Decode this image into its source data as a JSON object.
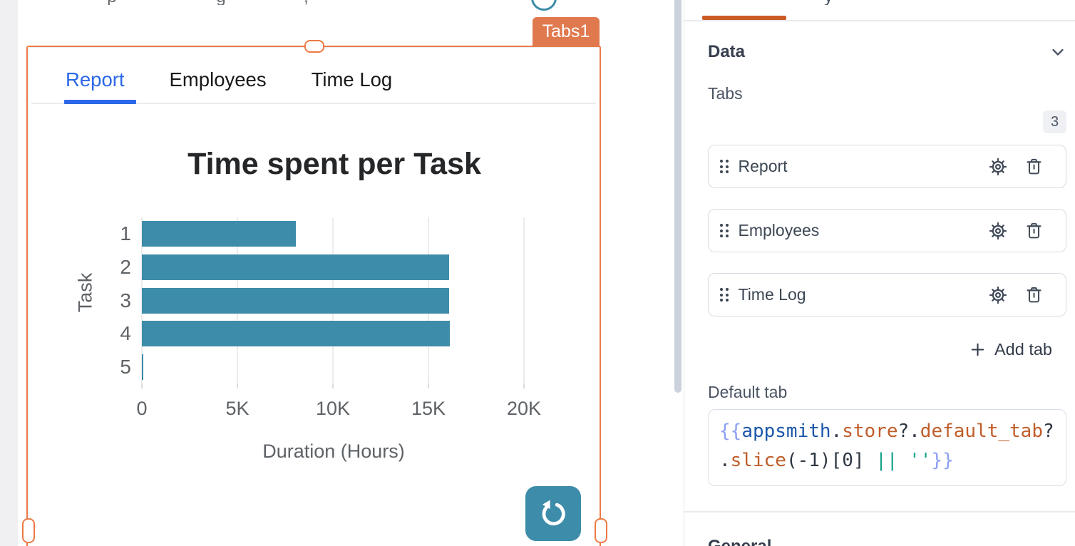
{
  "colors": {
    "widget_selection_orange": "#ed7a45",
    "widget_badge_bg": "#e0794e",
    "bar_teal": "#3d8caa",
    "active_widget_tab_blue": "#2c68e8",
    "pane_active_tab_orange": "#cb5a27",
    "code_brace": "#8b9ff2",
    "code_variable_blue": "#1b56a9",
    "code_property_orange": "#c05d2a",
    "code_operator_teal": "#17a38b"
  },
  "canvas": {
    "widget_badge": "Tabs1",
    "cutoff_glyphs": [
      "p",
      "g",
      ","
    ],
    "widget_tabs": [
      {
        "label": "Report",
        "active": true
      },
      {
        "label": "Employees",
        "active": false
      },
      {
        "label": "Time Log",
        "active": false
      }
    ]
  },
  "chart_data": {
    "type": "bar",
    "orientation": "horizontal",
    "title": "Time spent per Task",
    "xlabel": "Duration (Hours)",
    "ylabel": "Task",
    "categories": [
      "1",
      "2",
      "3",
      "4",
      "5"
    ],
    "values": [
      8050,
      16100,
      16080,
      16120,
      90
    ],
    "xticks": [
      0,
      5000,
      10000,
      15000,
      20000
    ],
    "xtick_labels": [
      "0",
      "5K",
      "10K",
      "15K",
      "20K"
    ],
    "xlim": [
      0,
      22500
    ],
    "grid": true,
    "legend": false,
    "bar_color": "#3d8caa"
  },
  "property_pane": {
    "cutoff_glyph": "y",
    "data_section": {
      "title": "Data",
      "tabs_label": "Tabs",
      "tabs_count": "3",
      "tabs": [
        {
          "label": "Report"
        },
        {
          "label": "Employees"
        },
        {
          "label": "Time Log"
        }
      ],
      "add_tab": "Add tab",
      "default_tab_label": "Default tab",
      "default_tab_code": "{{appsmith.store?.default_tab?.slice(-1)[0] || ''}}",
      "code_lines": [
        [
          {
            "t": "{{",
            "c": "brace"
          },
          {
            "t": "appsmith",
            "c": "var"
          },
          {
            "t": ".",
            "c": "punct"
          },
          {
            "t": "store",
            "c": "prop"
          },
          {
            "t": "?.",
            "c": "punct"
          },
          {
            "t": "default_tab",
            "c": "prop"
          },
          {
            "t": "?",
            "c": "punct"
          }
        ],
        [
          {
            "t": ".",
            "c": "punct"
          },
          {
            "t": "slice",
            "c": "prop"
          },
          {
            "t": "(-1)[0] ",
            "c": "punct"
          },
          {
            "t": "||",
            "c": "op"
          },
          {
            "t": " ",
            "c": "punct"
          },
          {
            "t": "''",
            "c": "str"
          },
          {
            "t": "}}",
            "c": "brace"
          }
        ]
      ]
    },
    "general_section": {
      "title": "General"
    }
  }
}
